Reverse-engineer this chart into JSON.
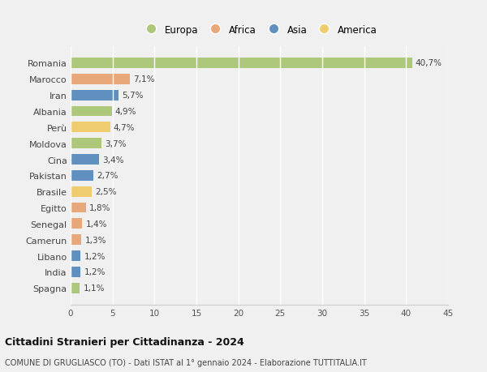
{
  "countries": [
    "Romania",
    "Marocco",
    "Iran",
    "Albania",
    "Perù",
    "Moldova",
    "Cina",
    "Pakistan",
    "Brasile",
    "Egitto",
    "Senegal",
    "Camerun",
    "Libano",
    "India",
    "Spagna"
  ],
  "values": [
    40.7,
    7.1,
    5.7,
    4.9,
    4.7,
    3.7,
    3.4,
    2.7,
    2.5,
    1.8,
    1.4,
    1.3,
    1.2,
    1.2,
    1.1
  ],
  "labels": [
    "40,7%",
    "7,1%",
    "5,7%",
    "4,9%",
    "4,7%",
    "3,7%",
    "3,4%",
    "2,7%",
    "2,5%",
    "1,8%",
    "1,4%",
    "1,3%",
    "1,2%",
    "1,2%",
    "1,1%"
  ],
  "continents": [
    "Europa",
    "Africa",
    "Asia",
    "Europa",
    "America",
    "Europa",
    "Asia",
    "Asia",
    "America",
    "Africa",
    "Africa",
    "Africa",
    "Asia",
    "Asia",
    "Europa"
  ],
  "continent_colors": {
    "Europa": "#adc87a",
    "Africa": "#e8a87a",
    "Asia": "#6090c0",
    "America": "#f0cc70"
  },
  "legend_order": [
    "Europa",
    "Africa",
    "Asia",
    "America"
  ],
  "xlim": [
    0,
    45
  ],
  "xticks": [
    0,
    5,
    10,
    15,
    20,
    25,
    30,
    35,
    40,
    45
  ],
  "title": "Cittadini Stranieri per Cittadinanza - 2024",
  "subtitle": "COMUNE DI GRUGLIASCO (TO) - Dati ISTAT al 1° gennaio 2024 - Elaborazione TUTTITALIA.IT",
  "bg_color": "#f0f0f0",
  "grid_color": "#ffffff",
  "bar_height": 0.65,
  "label_fontsize": 7.5,
  "ytick_fontsize": 8.0,
  "xtick_fontsize": 7.5
}
